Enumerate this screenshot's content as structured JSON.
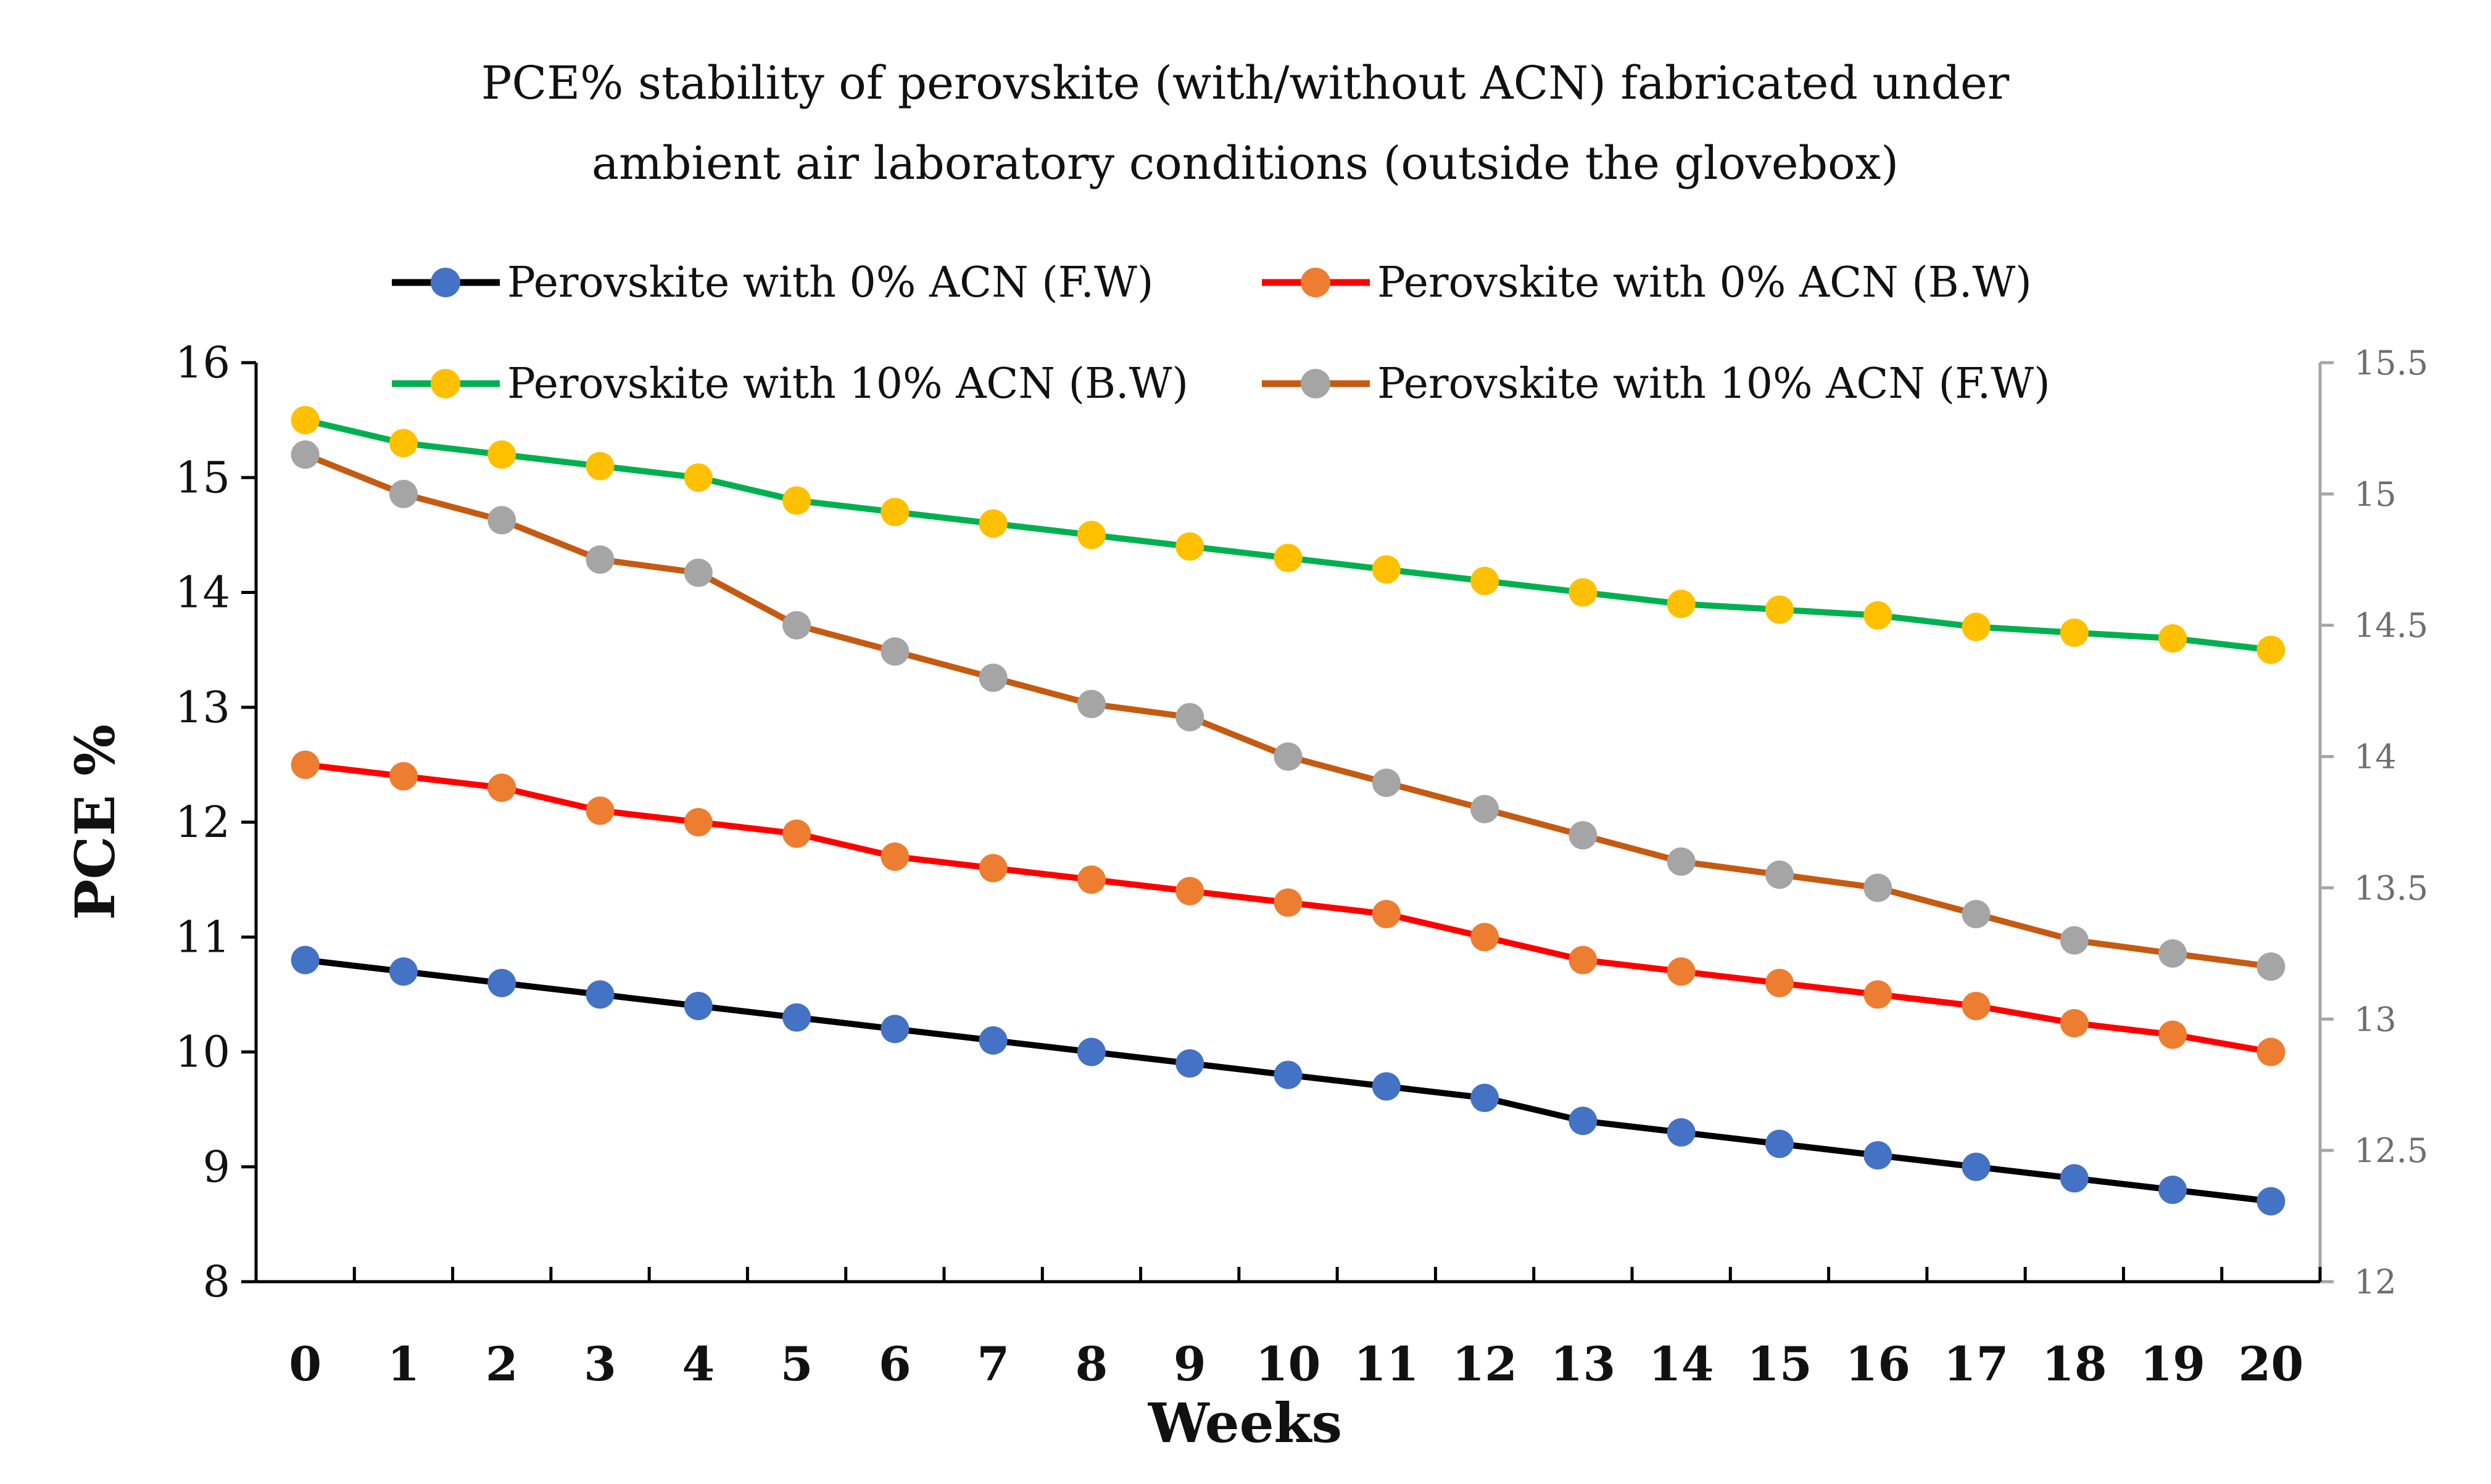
{
  "chart_data": {
    "type": "line",
    "title": "PCE% stability of perovskite (with/without ACN) fabricated under ambient air laboratory conditions (outside the glovebox)",
    "title_lines": [
      "PCE% stability of perovskite (with/without ACN) fabricated under",
      "ambient air laboratory conditions (outside the glovebox)"
    ],
    "xlabel": "Weeks",
    "ylabel": "PCE %",
    "x": [
      0,
      1,
      2,
      3,
      4,
      5,
      6,
      7,
      8,
      9,
      10,
      11,
      12,
      13,
      14,
      15,
      16,
      17,
      18,
      19,
      20
    ],
    "ylim": [
      8,
      16
    ],
    "yticks": [
      "8",
      "9",
      "10",
      "11",
      "12",
      "13",
      "14",
      "15",
      "16"
    ],
    "y2lim": [
      12,
      15.5
    ],
    "y2ticks": [
      "12",
      "12.5",
      "13",
      "13.5",
      "14",
      "14.5",
      "15",
      "15.5"
    ],
    "grid": false,
    "legend_position": "top",
    "series": [
      {
        "name": "Perovskite with 0% ACN (F.W)",
        "axis": "left",
        "line_color": "#000000",
        "marker_color": "#4472C4",
        "values": [
          10.8,
          10.7,
          10.6,
          10.5,
          10.4,
          10.3,
          10.2,
          10.1,
          10.0,
          9.9,
          9.8,
          9.7,
          9.6,
          9.4,
          9.3,
          9.2,
          9.1,
          9.0,
          8.9,
          8.8,
          8.7
        ]
      },
      {
        "name": "Perovskite with 0% ACN (B.W)",
        "axis": "left",
        "line_color": "#FF0000",
        "marker_color": "#ED7D31",
        "values": [
          12.5,
          12.4,
          12.3,
          12.1,
          12.0,
          11.9,
          11.7,
          11.6,
          11.5,
          11.4,
          11.3,
          11.2,
          11.0,
          10.8,
          10.7,
          10.6,
          10.5,
          10.4,
          10.25,
          10.15,
          10.0
        ]
      },
      {
        "name": "Perovskite with 10% ACN (B.W)",
        "axis": "left",
        "line_color": "#00B050",
        "marker_color": "#FFC000",
        "values": [
          15.5,
          15.3,
          15.2,
          15.1,
          15.0,
          14.8,
          14.7,
          14.6,
          14.5,
          14.4,
          14.3,
          14.2,
          14.1,
          14.0,
          13.9,
          13.85,
          13.8,
          13.7,
          13.65,
          13.6,
          13.5
        ]
      },
      {
        "name": "Perovskite with 10% ACN (F.W)",
        "axis": "right",
        "line_color": "#C55A11",
        "marker_color": "#A5A5A5",
        "values": [
          15.15,
          15.0,
          14.9,
          14.75,
          14.7,
          14.5,
          14.4,
          14.3,
          14.2,
          14.15,
          14.0,
          13.9,
          13.8,
          13.7,
          13.6,
          13.55,
          13.5,
          13.4,
          13.3,
          13.25,
          13.2
        ]
      }
    ]
  }
}
